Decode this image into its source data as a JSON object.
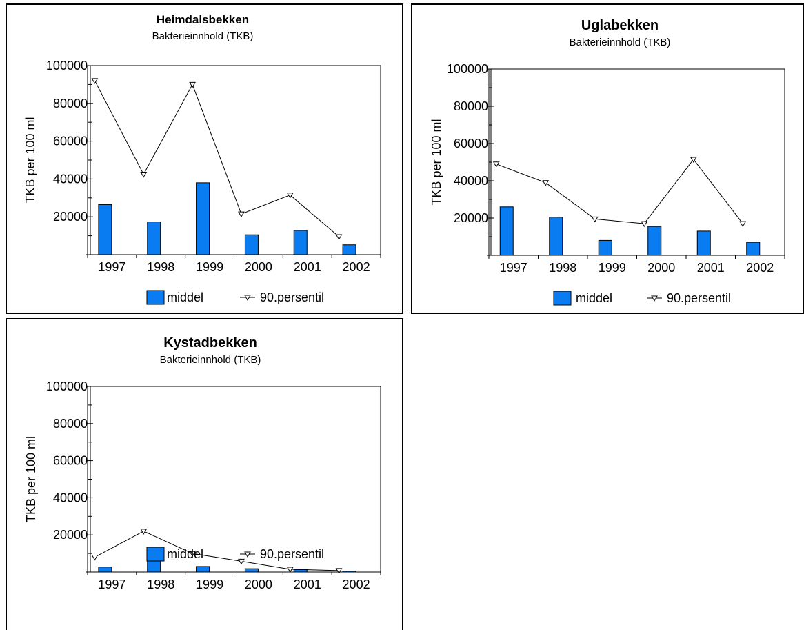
{
  "chart_data": [
    {
      "type": "bar",
      "title": "Heimdalsbekken",
      "subtitle": "Bakterieinnhold (TKB)",
      "xlabel": "",
      "ylabel": "TKB per 100 ml",
      "ylim": [
        0,
        100000
      ],
      "yticks": [
        "20000",
        "40000",
        "60000",
        "80000",
        "100000"
      ],
      "categories": [
        "1997",
        "1998",
        "1999",
        "2000",
        "2001",
        "2002"
      ],
      "grid": false,
      "legend_position": "bottom",
      "series": [
        {
          "name": "middel",
          "type": "bar",
          "color": "#0a7cf2",
          "values": [
            26500,
            17300,
            38000,
            10500,
            12800,
            5200
          ]
        },
        {
          "name": "90.persentil",
          "type": "line",
          "marker": "triangle-down",
          "color": "#000000",
          "values": [
            92000,
            42500,
            90000,
            21500,
            31500,
            9500
          ]
        }
      ]
    },
    {
      "type": "bar",
      "title": "Uglabekken",
      "subtitle": "Bakterieinnhold (TKB)",
      "xlabel": "",
      "ylabel": "TKB per 100 ml",
      "ylim": [
        0,
        100000
      ],
      "yticks": [
        "20000",
        "40000",
        "60000",
        "80000",
        "100000"
      ],
      "categories": [
        "1997",
        "1998",
        "1999",
        "2000",
        "2001",
        "2002"
      ],
      "grid": false,
      "legend_position": "bottom",
      "series": [
        {
          "name": "middel",
          "type": "bar",
          "color": "#0a7cf2",
          "values": [
            26000,
            20500,
            8000,
            15500,
            13000,
            7000
          ]
        },
        {
          "name": "90.persentil",
          "type": "line",
          "marker": "triangle-down",
          "color": "#000000",
          "values": [
            49000,
            39000,
            19500,
            17000,
            51500,
            17000
          ]
        }
      ]
    },
    {
      "type": "bar",
      "title": "Kystadbekken",
      "subtitle": "Bakterieinnhold (TKB)",
      "xlabel": "",
      "ylabel": "TKB per 100 ml",
      "ylim": [
        0,
        100000
      ],
      "yticks": [
        "20000",
        "40000",
        "60000",
        "80000",
        "100000"
      ],
      "categories": [
        "1997",
        "1998",
        "1999",
        "2000",
        "2001",
        "2002"
      ],
      "grid": false,
      "legend_position": "bottom",
      "series": [
        {
          "name": "middel",
          "type": "bar",
          "color": "#0a7cf2",
          "values": [
            2700,
            6800,
            3000,
            1800,
            1300,
            500
          ]
        },
        {
          "name": "90.persentil",
          "type": "line",
          "marker": "triangle-down",
          "color": "#000000",
          "values": [
            8000,
            22000,
            10000,
            5800,
            1500,
            800
          ]
        }
      ]
    }
  ]
}
